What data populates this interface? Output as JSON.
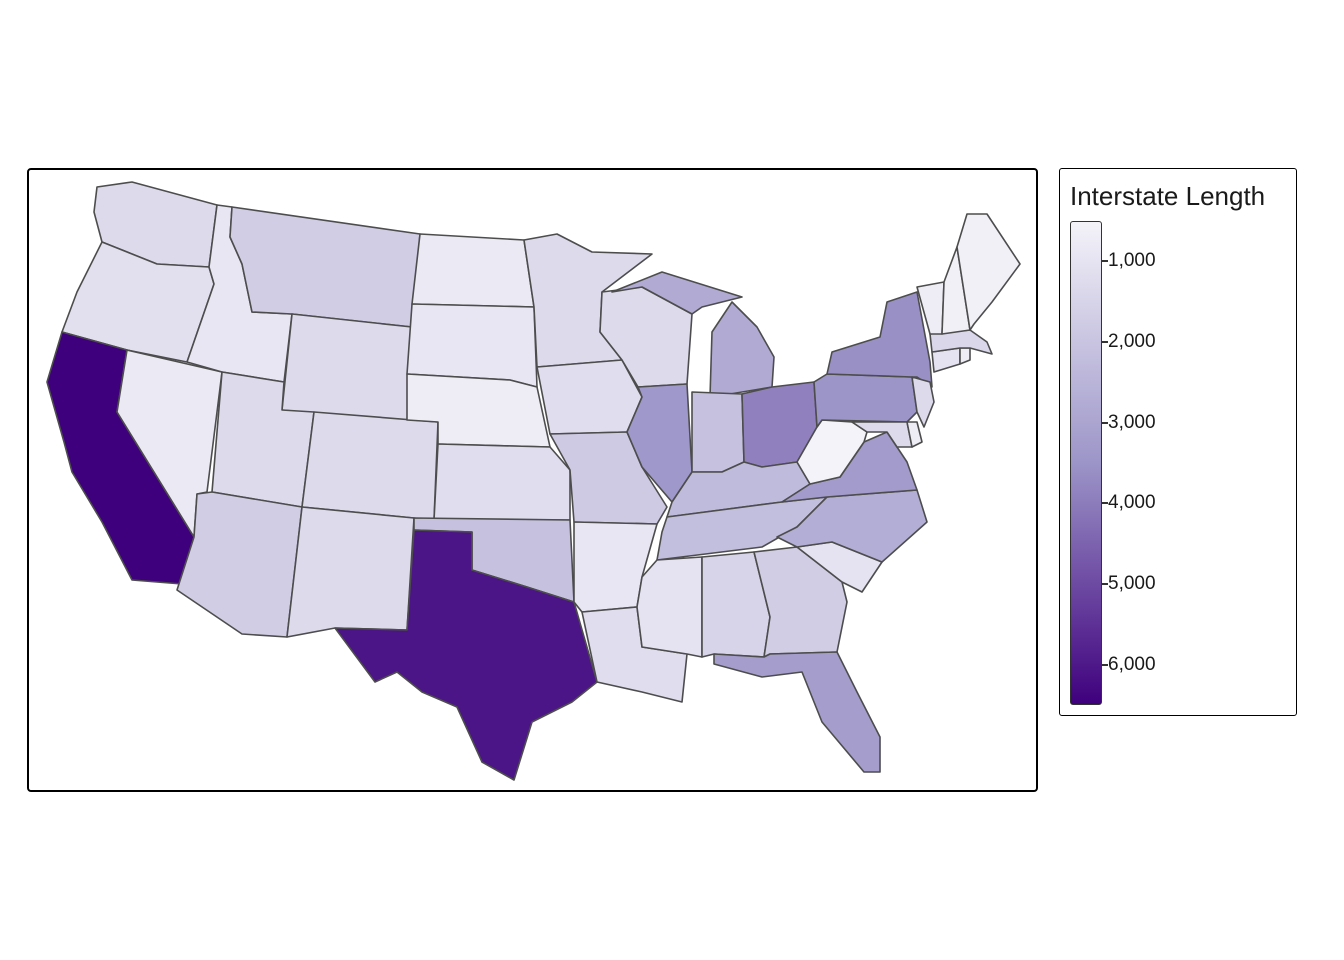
{
  "map": {
    "color_scale": {
      "min": 500,
      "max": 6500,
      "low_color": "#f4f3f9",
      "mid_color": "#9c95c8",
      "high_color": "#3f007d"
    }
  },
  "legend": {
    "title": "Interstate Length",
    "ticks": [
      {
        "label": "1,000",
        "value": 1000
      },
      {
        "label": "2,000",
        "value": 2000
      },
      {
        "label": "3,000",
        "value": 3000
      },
      {
        "label": "4,000",
        "value": 4000
      },
      {
        "label": "5,000",
        "value": 5000
      },
      {
        "label": "6,000",
        "value": 6000
      }
    ]
  },
  "states": [
    {
      "name": "Washington",
      "value": 1300
    },
    {
      "name": "Oregon",
      "value": 1100
    },
    {
      "name": "California",
      "value": 6500
    },
    {
      "name": "Nevada",
      "value": 800
    },
    {
      "name": "Idaho",
      "value": 900
    },
    {
      "name": "Montana",
      "value": 1700
    },
    {
      "name": "Wyoming",
      "value": 1300
    },
    {
      "name": "Utah",
      "value": 1300
    },
    {
      "name": "Arizona",
      "value": 1700
    },
    {
      "name": "Colorado",
      "value": 1300
    },
    {
      "name": "New Mexico",
      "value": 1300
    },
    {
      "name": "North Dakota",
      "value": 800
    },
    {
      "name": "South Dakota",
      "value": 900
    },
    {
      "name": "Nebraska",
      "value": 700
    },
    {
      "name": "Kansas",
      "value": 1200
    },
    {
      "name": "Oklahoma",
      "value": 2100
    },
    {
      "name": "Texas",
      "value": 6100
    },
    {
      "name": "Minnesota",
      "value": 1300
    },
    {
      "name": "Iowa",
      "value": 1200
    },
    {
      "name": "Missouri",
      "value": 1800
    },
    {
      "name": "Arkansas",
      "value": 900
    },
    {
      "name": "Louisiana",
      "value": 1200
    },
    {
      "name": "Wisconsin",
      "value": 1300
    },
    {
      "name": "Illinois",
      "value": 3400
    },
    {
      "name": "Michigan",
      "value": 2800
    },
    {
      "name": "Indiana",
      "value": 2100
    },
    {
      "name": "Ohio",
      "value": 3900
    },
    {
      "name": "Kentucky",
      "value": 2300
    },
    {
      "name": "Tennessee",
      "value": 2200
    },
    {
      "name": "Mississippi",
      "value": 1000
    },
    {
      "name": "Alabama",
      "value": 1500
    },
    {
      "name": "Georgia",
      "value": 1700
    },
    {
      "name": "Florida",
      "value": 3200
    },
    {
      "name": "South Carolina",
      "value": 1000
    },
    {
      "name": "North Carolina",
      "value": 2700
    },
    {
      "name": "Virginia",
      "value": 3300
    },
    {
      "name": "West Virginia",
      "value": 500
    },
    {
      "name": "Pennsylvania",
      "value": 3500
    },
    {
      "name": "New York",
      "value": 3600
    },
    {
      "name": "Maryland",
      "value": 1300
    },
    {
      "name": "Delaware",
      "value": 700
    },
    {
      "name": "New Jersey",
      "value": 1300
    },
    {
      "name": "Connecticut",
      "value": 1000
    },
    {
      "name": "Rhode Island",
      "value": 700
    },
    {
      "name": "Massachusetts",
      "value": 1400
    },
    {
      "name": "Vermont",
      "value": 700
    },
    {
      "name": "New Hampshire",
      "value": 600
    },
    {
      "name": "Maine",
      "value": 600
    }
  ]
}
